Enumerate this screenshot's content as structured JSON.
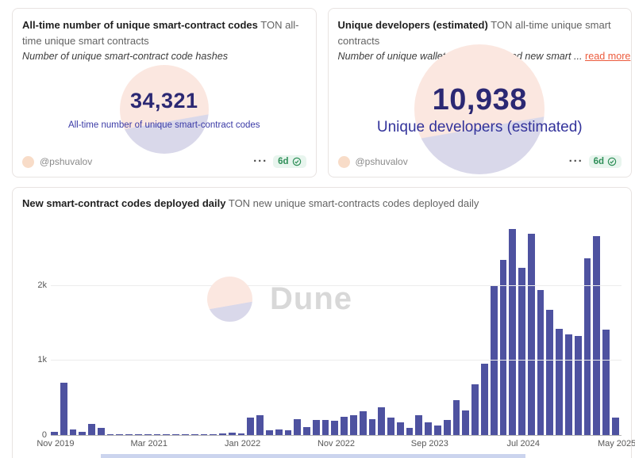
{
  "cards": {
    "codes": {
      "title": "All-time number of unique smart-contract codes",
      "subtitle": "TON all-time unique smart contracts",
      "description": "Number of unique smart-contract code hashes",
      "counter": "34,321",
      "counter_label": "All-time number of unique smart-contract codes",
      "author": "@pshuvalov",
      "menu": "···",
      "badge": "6d"
    },
    "developers": {
      "title": "Unique developers (estimated)",
      "subtitle": "TON all-time unique smart contracts",
      "description": "Number of unique wallets which deployed new smart ...",
      "read_more": "read more",
      "counter": "10,938",
      "counter_label": "Unique developers (estimated)",
      "author": "@pshuvalov",
      "menu": "···",
      "badge": "6d"
    }
  },
  "chart": {
    "title": "New smart-contract codes deployed daily",
    "subtitle": "TON new unique smart-contracts codes deployed daily",
    "watermark": "Dune"
  },
  "chart_data": {
    "type": "bar",
    "title": "New smart-contract codes deployed daily",
    "subtitle": "TON new unique smart-contracts codes deployed daily",
    "bar_color": "#4e52a0",
    "grid": true,
    "ylim": [
      0,
      2800
    ],
    "y_ticks": [
      "0",
      "1k",
      "2k"
    ],
    "y_tick_values": [
      0,
      1000,
      2000
    ],
    "x_tick_labels": [
      "Nov 2019",
      "Mar 2021",
      "Jan 2022",
      "Nov 2022",
      "Sep 2023",
      "Jul 2024",
      "May 2025"
    ],
    "x_tick_indices": [
      0,
      10,
      20,
      30,
      40,
      50,
      60
    ],
    "values": [
      40,
      700,
      70,
      40,
      150,
      90,
      10,
      6,
      5,
      5,
      5,
      5,
      6,
      8,
      8,
      10,
      12,
      15,
      20,
      30,
      25,
      235,
      260,
      65,
      75,
      60,
      215,
      110,
      205,
      205,
      190,
      240,
      260,
      315,
      210,
      370,
      230,
      170,
      100,
      260,
      170,
      130,
      200,
      460,
      330,
      680,
      950,
      2000,
      2330,
      2750,
      2230,
      2680,
      1930,
      1670,
      1420,
      1340,
      1320,
      2360,
      2650,
      1400,
      230
    ]
  },
  "colors": {
    "bar": "#4e52a0",
    "counter": "#2b2873",
    "counter_label": "#3a3aa6",
    "badge_green": "#2e8f58",
    "read_more_orange": "#ec5b3d",
    "watermark_peach": "#fbe7e0",
    "watermark_lavender": "#d9d8ea"
  }
}
